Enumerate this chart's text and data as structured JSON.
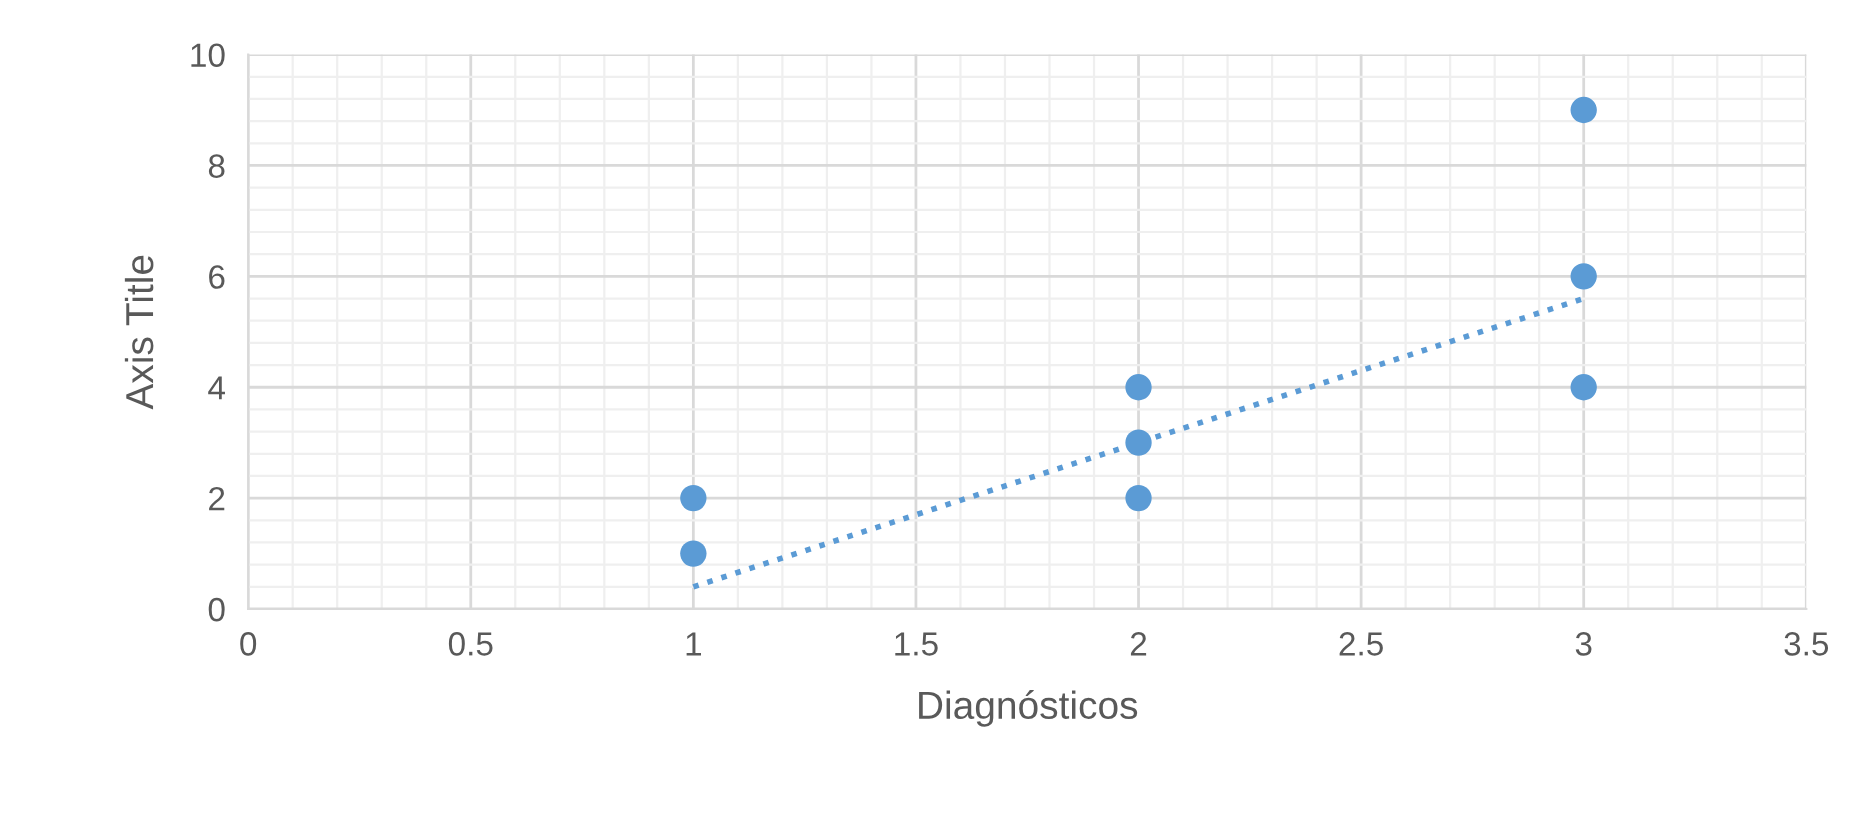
{
  "chart_data": {
    "type": "scatter",
    "xlabel": "Diagnósticos",
    "ylabel": "Axis Title",
    "series": [
      {
        "color": "#5b9bd5",
        "marker": "circle",
        "x": [
          1,
          1,
          2,
          2,
          2,
          3,
          3,
          3
        ],
        "values": [
          1,
          2,
          2,
          3,
          4,
          4,
          6,
          9
        ]
      },
      {
        "type": "line",
        "color": "#5b9bd5",
        "marker": "none",
        "line_style": "dotted",
        "x": [
          1,
          3
        ],
        "values": [
          0.4,
          5.6
        ]
      }
    ],
    "xlim": [
      0,
      3.5
    ],
    "xticks": [
      0,
      0.5,
      1,
      1.5,
      2,
      2.5,
      3,
      3.5
    ],
    "ylim": [
      0,
      10
    ],
    "yticks": [
      0,
      2,
      4,
      6,
      8,
      10
    ],
    "grid": true,
    "legend": false
  }
}
